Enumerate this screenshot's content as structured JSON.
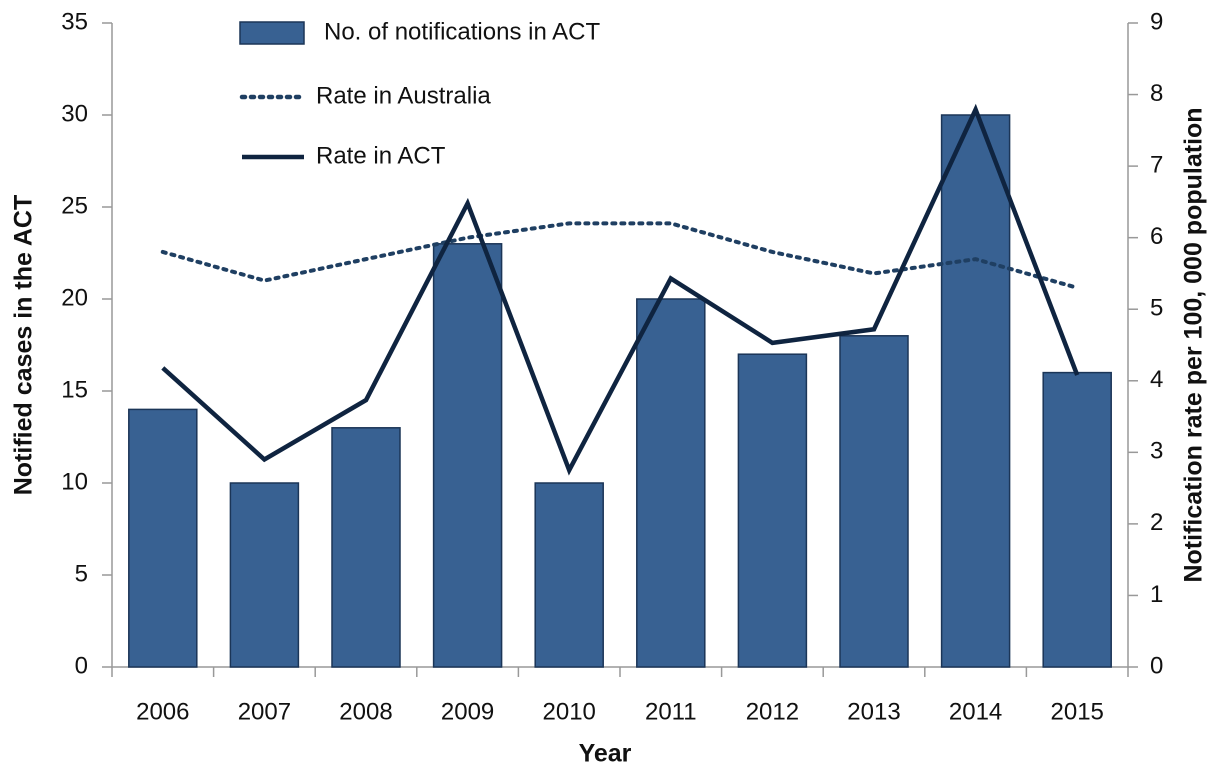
{
  "chart_data": {
    "type": "bar_line",
    "x_label": "Year",
    "y_label": "Notified cases in the ACT",
    "y2_label": "Notification rate per 100, 000 population",
    "categories": [
      "2006",
      "2007",
      "2008",
      "2009",
      "2010",
      "2011",
      "2012",
      "2013",
      "2014",
      "2015"
    ],
    "series": [
      {
        "name": "No. of notifications in ACT",
        "type": "bar",
        "color": "#386192",
        "values": [
          14,
          10,
          13,
          23,
          10,
          20,
          17,
          18,
          30,
          16
        ]
      },
      {
        "name": "Rate in Australia",
        "type": "line",
        "style": "dotted",
        "axis": "y2",
        "color": "#1f3f62",
        "values": [
          5.8,
          5.4,
          5.7,
          6.0,
          6.2,
          6.2,
          5.8,
          5.5,
          5.7,
          5.3
        ]
      },
      {
        "name": "Rate in ACT",
        "type": "line",
        "style": "solid",
        "axis": "y2",
        "color": "#0f2440",
        "values": [
          4.18,
          2.9,
          3.73,
          6.48,
          2.75,
          5.43,
          4.53,
          4.72,
          7.79,
          4.08
        ]
      }
    ],
    "ylim": [
      0,
      35
    ],
    "yticks": [
      0,
      5,
      10,
      15,
      20,
      25,
      30,
      35
    ],
    "y2lim": [
      0,
      9
    ],
    "y2ticks": [
      0,
      1,
      2,
      3,
      4,
      5,
      6,
      7,
      8,
      9
    ]
  }
}
